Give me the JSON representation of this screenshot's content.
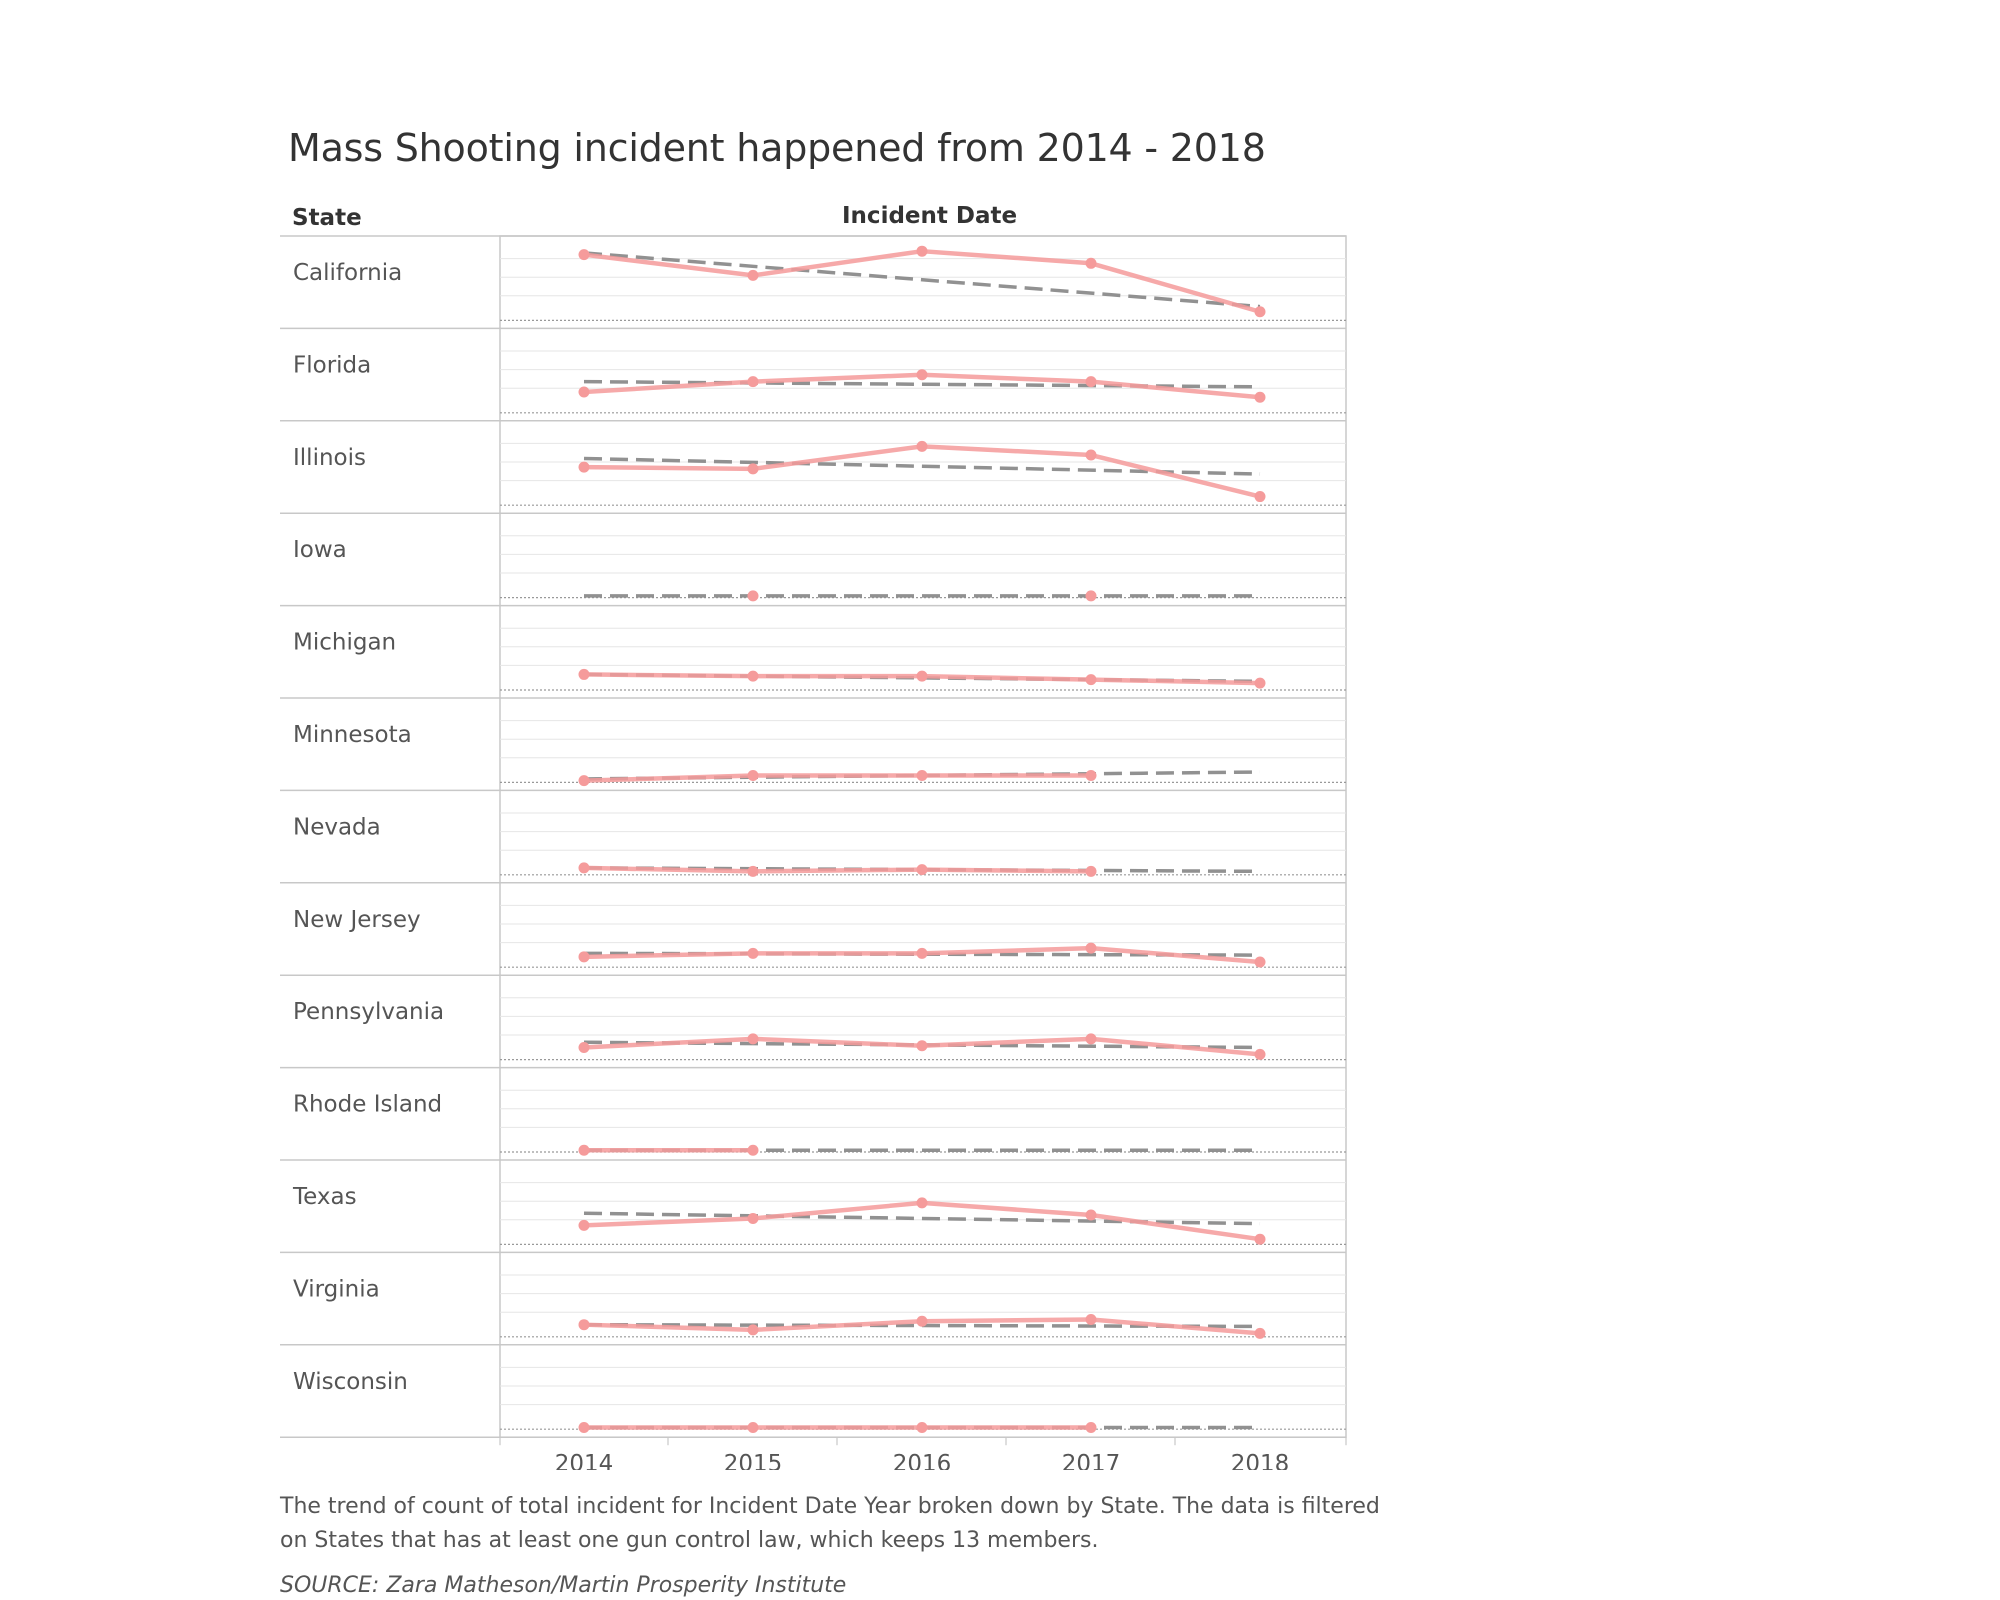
{
  "title": "Mass Shooting incident happened from 2014 - 2018",
  "column_headers": {
    "state": "State",
    "date": "Incident Date"
  },
  "caption": "The trend of count of total incident for Incident Date Year broken down by State.  The data is filtered on States that has at least one gun control law, which keeps 13 members.",
  "source": "SOURCE: Zara Matheson/Martin Prosperity Institute",
  "colors": {
    "actual": "#f59b9b",
    "trend": "#8c8c8c",
    "grid": "#e6e6e6",
    "border": "#c8c8c8"
  },
  "chart_data": {
    "type": "line",
    "x": [
      2014,
      2015,
      2016,
      2017,
      2018
    ],
    "xlabel": "Incident Date",
    "ylabel": "State",
    "ylim": [
      0,
      43
    ],
    "grid": true,
    "panels": [
      {
        "state": "California",
        "values": [
          38,
          26,
          40,
          33,
          5
        ],
        "trend": [
          39,
          8
        ]
      },
      {
        "state": "Florida",
        "values": [
          12,
          18,
          22,
          18,
          9
        ],
        "trend": [
          18,
          15
        ]
      },
      {
        "state": "Illinois",
        "values": [
          22,
          21,
          34,
          29,
          5
        ],
        "trend": [
          27,
          18
        ]
      },
      {
        "state": "Iowa",
        "values": [
          null,
          1,
          null,
          1,
          null
        ],
        "trend": [
          1,
          1
        ]
      },
      {
        "state": "Michigan",
        "values": [
          9,
          8,
          8,
          6,
          4
        ],
        "trend": [
          9,
          5
        ]
      },
      {
        "state": "Minnesota",
        "values": [
          1,
          4,
          4,
          4,
          null
        ],
        "trend": [
          2,
          6
        ]
      },
      {
        "state": "Nevada",
        "values": [
          4,
          2,
          3,
          2,
          null
        ],
        "trend": [
          4,
          2
        ]
      },
      {
        "state": "New Jersey",
        "values": [
          6,
          8,
          8,
          11,
          3
        ],
        "trend": [
          8,
          7
        ]
      },
      {
        "state": "Pennsylvania",
        "values": [
          7,
          12,
          8,
          12,
          3
        ],
        "trend": [
          10,
          7
        ]
      },
      {
        "state": "Rhode Island",
        "values": [
          1,
          1,
          null,
          null,
          null
        ],
        "trend": [
          1,
          1
        ]
      },
      {
        "state": "Texas",
        "values": [
          11,
          15,
          24,
          17,
          3
        ],
        "trend": [
          18,
          12
        ]
      },
      {
        "state": "Virginia",
        "values": [
          7,
          4,
          9,
          10,
          2
        ],
        "trend": [
          7,
          6
        ]
      },
      {
        "state": "Wisconsin",
        "values": [
          1,
          1,
          1,
          1,
          null
        ],
        "trend": [
          1,
          1
        ]
      }
    ]
  }
}
